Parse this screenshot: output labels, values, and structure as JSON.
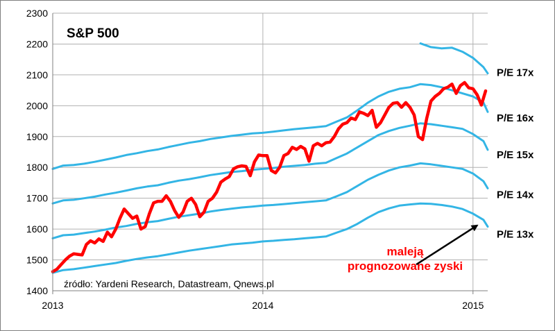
{
  "chart_data": {
    "type": "line",
    "title": "S&P 500",
    "xlabel": "",
    "ylabel": "",
    "ylim": [
      1400,
      2300
    ],
    "yticks": [
      1400,
      1500,
      1600,
      1700,
      1800,
      1900,
      2000,
      2100,
      2200,
      2300
    ],
    "xlim": [
      2013.0,
      2015.07
    ],
    "xticks": [
      {
        "value": 2013,
        "label": "2013"
      },
      {
        "value": 2014,
        "label": "2014"
      },
      {
        "value": 2015,
        "label": "2015"
      }
    ],
    "grid": true,
    "colors": {
      "sp500": "#ff0000",
      "pe": "#33b5e5",
      "text": "#000000",
      "annotation": "#ff0000",
      "grid": "#b0b0b0"
    },
    "series": [
      {
        "name": "S&P 500",
        "role": "index",
        "x": [
          2013.0,
          2013.02,
          2013.04,
          2013.06,
          2013.08,
          2013.1,
          2013.12,
          2013.14,
          2013.16,
          2013.18,
          2013.2,
          2013.22,
          2013.24,
          2013.26,
          2013.28,
          2013.3,
          2013.32,
          2013.34,
          2013.36,
          2013.38,
          2013.4,
          2013.42,
          2013.44,
          2013.46,
          2013.48,
          2013.5,
          2013.52,
          2013.54,
          2013.56,
          2013.58,
          2013.6,
          2013.62,
          2013.64,
          2013.66,
          2013.68,
          2013.7,
          2013.72,
          2013.74,
          2013.76,
          2013.78,
          2013.8,
          2013.82,
          2013.84,
          2013.86,
          2013.88,
          2013.9,
          2013.92,
          2013.94,
          2013.96,
          2013.98,
          2014.0,
          2014.02,
          2014.04,
          2014.06,
          2014.08,
          2014.1,
          2014.12,
          2014.14,
          2014.16,
          2014.18,
          2014.2,
          2014.22,
          2014.24,
          2014.26,
          2014.28,
          2014.3,
          2014.32,
          2014.34,
          2014.36,
          2014.38,
          2014.4,
          2014.42,
          2014.44,
          2014.46,
          2014.48,
          2014.5,
          2014.52,
          2014.54,
          2014.56,
          2014.58,
          2014.6,
          2014.62,
          2014.64,
          2014.66,
          2014.68,
          2014.7,
          2014.72,
          2014.74,
          2014.76,
          2014.78,
          2014.8,
          2014.82,
          2014.84,
          2014.86,
          2014.88,
          2014.9,
          2014.92,
          2014.94,
          2014.96,
          2014.98,
          2015.0,
          2015.02,
          2015.04,
          2015.06
        ],
        "values": [
          1462,
          1470,
          1485,
          1500,
          1512,
          1520,
          1518,
          1516,
          1550,
          1562,
          1555,
          1568,
          1560,
          1590,
          1575,
          1600,
          1635,
          1665,
          1650,
          1635,
          1642,
          1600,
          1608,
          1650,
          1685,
          1690,
          1690,
          1708,
          1690,
          1660,
          1638,
          1655,
          1690,
          1700,
          1680,
          1640,
          1655,
          1690,
          1700,
          1720,
          1752,
          1762,
          1770,
          1795,
          1802,
          1805,
          1803,
          1773,
          1818,
          1840,
          1838,
          1838,
          1790,
          1782,
          1800,
          1838,
          1845,
          1865,
          1858,
          1868,
          1860,
          1820,
          1870,
          1878,
          1870,
          1880,
          1882,
          1900,
          1925,
          1940,
          1945,
          1960,
          1955,
          1980,
          1975,
          1968,
          1985,
          1930,
          1945,
          1970,
          1995,
          2008,
          2010,
          1995,
          2010,
          1995,
          1970,
          1900,
          1890,
          1960,
          2015,
          2030,
          2040,
          2055,
          2060,
          2070,
          2040,
          2065,
          2075,
          2058,
          2055,
          2035,
          2002,
          2048
        ]
      },
      {
        "name": "P/E 17x",
        "role": "pe",
        "x": [
          2014.75,
          2014.8,
          2014.85,
          2014.9,
          2014.95,
          2015.0,
          2015.05,
          2015.07
        ],
        "values": [
          2202,
          2190,
          2186,
          2188,
          2175,
          2155,
          2125,
          2105
        ]
      },
      {
        "name": "P/E 16x",
        "role": "pe",
        "x": [
          2013.0,
          2013.05,
          2013.1,
          2013.15,
          2013.2,
          2013.25,
          2013.3,
          2013.35,
          2013.4,
          2013.45,
          2013.5,
          2013.55,
          2013.6,
          2013.65,
          2013.7,
          2013.75,
          2013.8,
          2013.85,
          2013.9,
          2013.95,
          2014.0,
          2014.05,
          2014.1,
          2014.15,
          2014.2,
          2014.25,
          2014.3,
          2014.35,
          2014.4,
          2014.45,
          2014.5,
          2014.55,
          2014.6,
          2014.65,
          2014.7,
          2014.75,
          2014.8,
          2014.85,
          2014.9,
          2014.95,
          2015.0,
          2015.05,
          2015.07
        ],
        "values": [
          1795,
          1806,
          1808,
          1812,
          1818,
          1825,
          1832,
          1840,
          1846,
          1853,
          1858,
          1866,
          1873,
          1880,
          1885,
          1892,
          1897,
          1902,
          1906,
          1910,
          1912,
          1916,
          1920,
          1924,
          1927,
          1930,
          1934,
          1948,
          1962,
          1985,
          2010,
          2030,
          2045,
          2055,
          2060,
          2070,
          2067,
          2060,
          2050,
          2040,
          2030,
          2010,
          1980
        ]
      },
      {
        "name": "P/E 15x",
        "role": "pe",
        "x": [
          2013.0,
          2013.05,
          2013.1,
          2013.15,
          2013.2,
          2013.25,
          2013.3,
          2013.35,
          2013.4,
          2013.45,
          2013.5,
          2013.55,
          2013.6,
          2013.65,
          2013.7,
          2013.75,
          2013.8,
          2013.85,
          2013.9,
          2013.95,
          2014.0,
          2014.05,
          2014.1,
          2014.15,
          2014.2,
          2014.25,
          2014.3,
          2014.35,
          2014.4,
          2014.45,
          2014.5,
          2014.55,
          2014.6,
          2014.65,
          2014.7,
          2014.75,
          2014.8,
          2014.85,
          2014.9,
          2014.95,
          2015.0,
          2015.05,
          2015.07
        ],
        "values": [
          1683,
          1693,
          1695,
          1700,
          1705,
          1712,
          1718,
          1725,
          1732,
          1738,
          1742,
          1750,
          1757,
          1762,
          1768,
          1775,
          1780,
          1785,
          1788,
          1792,
          1795,
          1798,
          1802,
          1805,
          1808,
          1812,
          1815,
          1830,
          1845,
          1865,
          1885,
          1905,
          1918,
          1928,
          1935,
          1943,
          1940,
          1935,
          1930,
          1925,
          1908,
          1885,
          1857
        ]
      },
      {
        "name": "P/E 14x",
        "role": "pe",
        "x": [
          2013.0,
          2013.05,
          2013.1,
          2013.15,
          2013.2,
          2013.25,
          2013.3,
          2013.35,
          2013.4,
          2013.45,
          2013.5,
          2013.55,
          2013.6,
          2013.65,
          2013.7,
          2013.75,
          2013.8,
          2013.85,
          2013.9,
          2013.95,
          2014.0,
          2014.05,
          2014.1,
          2014.15,
          2014.2,
          2014.25,
          2014.3,
          2014.35,
          2014.4,
          2014.45,
          2014.5,
          2014.55,
          2014.6,
          2014.65,
          2014.7,
          2014.75,
          2014.8,
          2014.85,
          2014.9,
          2014.95,
          2015.0,
          2015.05,
          2015.07
        ],
        "values": [
          1570,
          1580,
          1582,
          1587,
          1592,
          1598,
          1605,
          1610,
          1617,
          1622,
          1626,
          1633,
          1640,
          1645,
          1650,
          1657,
          1662,
          1666,
          1670,
          1673,
          1676,
          1678,
          1681,
          1684,
          1687,
          1690,
          1693,
          1706,
          1720,
          1740,
          1760,
          1776,
          1790,
          1800,
          1806,
          1813,
          1810,
          1805,
          1800,
          1795,
          1780,
          1755,
          1732
        ]
      },
      {
        "name": "P/E 13x",
        "role": "pe",
        "x": [
          2013.0,
          2013.05,
          2013.1,
          2013.15,
          2013.2,
          2013.25,
          2013.3,
          2013.35,
          2013.4,
          2013.45,
          2013.5,
          2013.55,
          2013.6,
          2013.65,
          2013.7,
          2013.75,
          2013.8,
          2013.85,
          2013.9,
          2013.95,
          2014.0,
          2014.05,
          2014.1,
          2014.15,
          2014.2,
          2014.25,
          2014.3,
          2014.35,
          2014.4,
          2014.45,
          2014.5,
          2014.55,
          2014.6,
          2014.65,
          2014.7,
          2014.75,
          2014.8,
          2014.85,
          2014.9,
          2014.95,
          2015.0,
          2015.05,
          2015.07
        ],
        "values": [
          1458,
          1467,
          1470,
          1475,
          1480,
          1485,
          1490,
          1497,
          1503,
          1508,
          1512,
          1518,
          1524,
          1530,
          1535,
          1540,
          1545,
          1550,
          1553,
          1556,
          1560,
          1562,
          1565,
          1567,
          1570,
          1573,
          1576,
          1588,
          1600,
          1617,
          1637,
          1655,
          1667,
          1676,
          1680,
          1683,
          1682,
          1678,
          1673,
          1665,
          1650,
          1630,
          1608
        ]
      }
    ],
    "line_labels": [
      "P/E 17x",
      "P/E 16x",
      "P/E 15x",
      "P/E 14x",
      "P/E 13x"
    ],
    "annotations": [
      {
        "text": "maleją",
        "color": "#ff0000"
      },
      {
        "text": "prognozowane zyski",
        "color": "#ff0000"
      }
    ],
    "arrow_target": {
      "x": 2015.02,
      "y": 1612
    },
    "arrow_source": {
      "x": 2014.73,
      "y": 1485
    },
    "source_note": "źródło: Yardeni Research, Datastream, Qnews.pl"
  }
}
